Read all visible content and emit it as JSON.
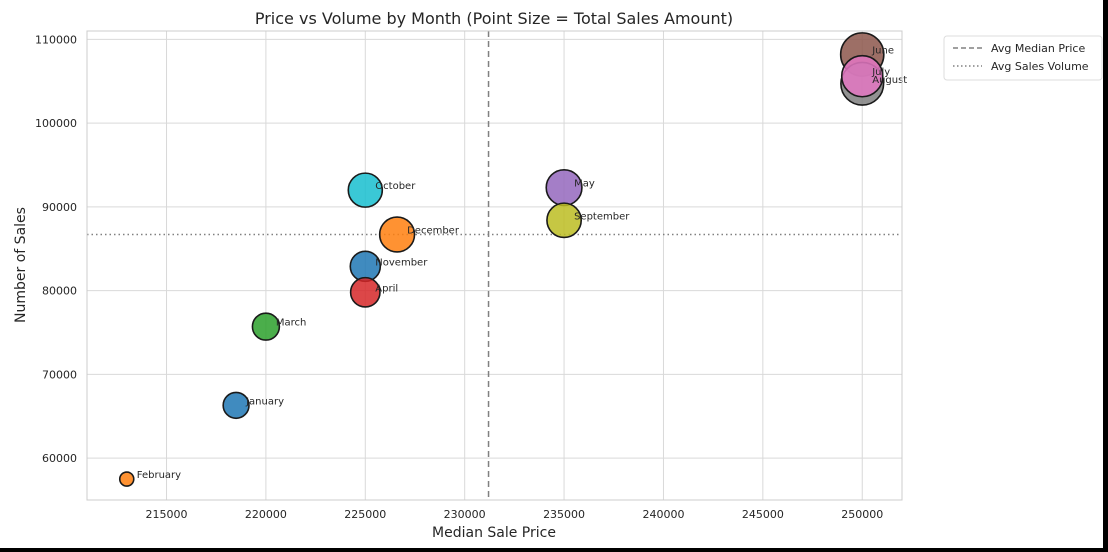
{
  "chart_data": {
    "type": "scatter",
    "title": "Price vs Volume by Month (Point Size = Total Sales Amount)",
    "xlabel": "Median Sale Price",
    "ylabel": "Number of Sales",
    "xlim": [
      211000,
      252000
    ],
    "ylim": [
      55000,
      111000
    ],
    "xticks": [
      215000,
      220000,
      225000,
      230000,
      235000,
      240000,
      245000,
      250000
    ],
    "yticks": [
      60000,
      70000,
      80000,
      90000,
      100000,
      110000
    ],
    "grid": true,
    "legend": {
      "position": "outside-top-right",
      "entries": [
        {
          "label": "Avg Median Price",
          "style": "dashed"
        },
        {
          "label": "Avg Sales Volume",
          "style": "dotted"
        }
      ]
    },
    "reference_lines": {
      "avg_median_price": 231200,
      "avg_sales_volume": 86700
    },
    "points": [
      {
        "month": "January",
        "x": 218500,
        "y": 66300,
        "size": 3.4,
        "color": "#1f77b4"
      },
      {
        "month": "February",
        "x": 213000,
        "y": 57500,
        "size": 1.0,
        "color": "#ff7f0e"
      },
      {
        "month": "March",
        "x": 220000,
        "y": 75700,
        "size": 3.7,
        "color": "#2ca02c"
      },
      {
        "month": "April",
        "x": 225000,
        "y": 79800,
        "size": 4.4,
        "color": "#d62728"
      },
      {
        "month": "May",
        "x": 235000,
        "y": 92300,
        "size": 6.5,
        "color": "#9467bd"
      },
      {
        "month": "June",
        "x": 250000,
        "y": 108200,
        "size": 9.5,
        "color": "#8c564b"
      },
      {
        "month": "July",
        "x": 250000,
        "y": 105600,
        "size": 8.6,
        "color": "#e377c2"
      },
      {
        "month": "August",
        "x": 250000,
        "y": 104700,
        "size": 9.3,
        "color": "#7f7f7f"
      },
      {
        "month": "September",
        "x": 235000,
        "y": 88400,
        "size": 6.0,
        "color": "#bcbd22"
      },
      {
        "month": "October",
        "x": 225000,
        "y": 92000,
        "size": 5.9,
        "color": "#17becf"
      },
      {
        "month": "November",
        "x": 225000,
        "y": 82900,
        "size": 4.6,
        "color": "#1f77b4"
      },
      {
        "month": "December",
        "x": 226600,
        "y": 86700,
        "size": 6.2,
        "color": "#ff7f0e"
      }
    ]
  }
}
